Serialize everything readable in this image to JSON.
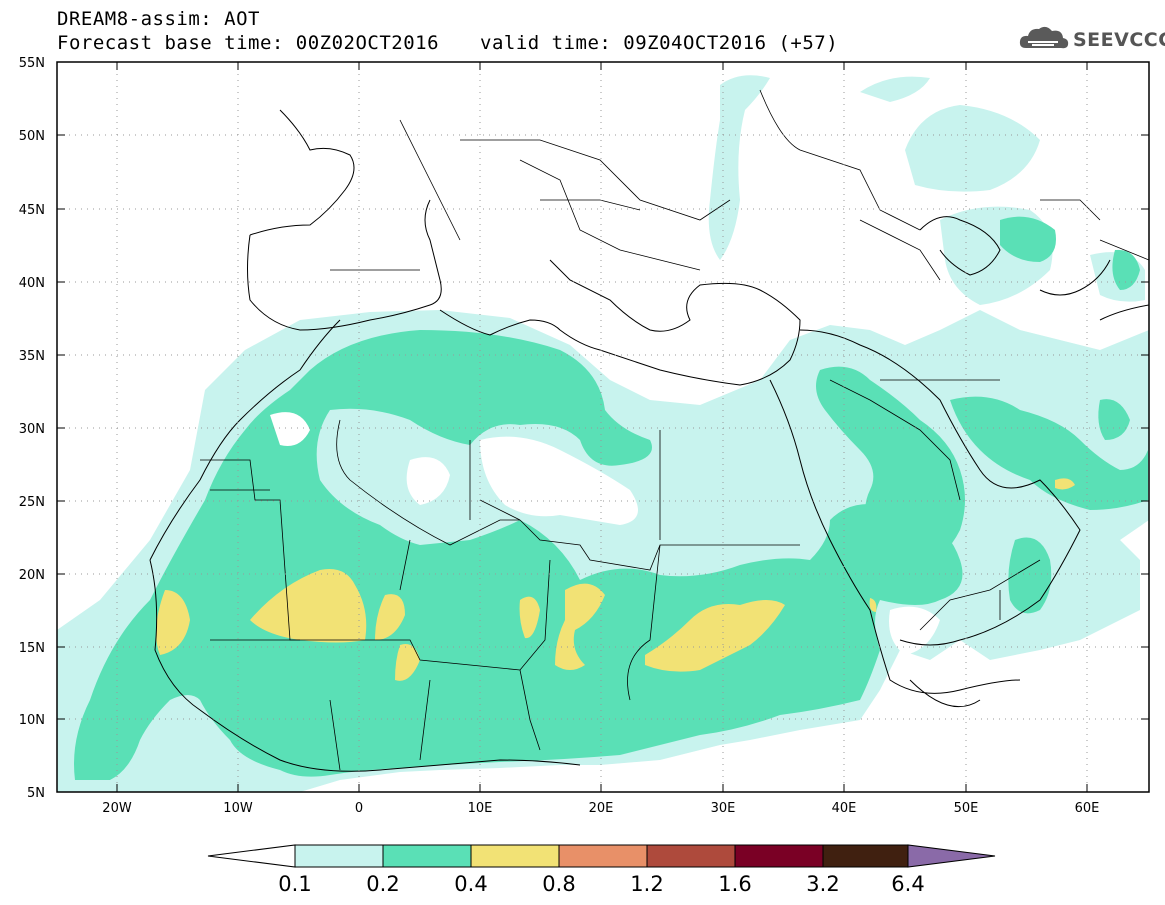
{
  "header": {
    "title_line1": "DREAM8-assim: AOT",
    "title_line2": "Forecast base time: 00Z02OCT2016",
    "valid_time": "valid time: 09Z04OCT2016 (+57)",
    "logo_text": "SEEVCCC"
  },
  "map": {
    "lat_labels": [
      "55N",
      "50N",
      "45N",
      "40N",
      "35N",
      "30N",
      "25N",
      "20N",
      "15N",
      "10N",
      "5N"
    ],
    "lon_labels": [
      "20W",
      "10W",
      "0",
      "10E",
      "20E",
      "30E",
      "40E",
      "50E",
      "60E"
    ],
    "lon_range": [
      -25,
      65
    ],
    "lat_range": [
      5,
      55
    ]
  },
  "colorbar": {
    "labels": [
      "0.1",
      "0.2",
      "0.4",
      "0.8",
      "1.2",
      "1.6",
      "3.2",
      "6.4"
    ],
    "colors": [
      "#c8f3ee",
      "#5ae0b6",
      "#f2e275",
      "#e89068",
      "#ae4a3c",
      "#7a0025",
      "#402010",
      "#8a6aa8"
    ],
    "under_color": "#ffffff"
  }
}
